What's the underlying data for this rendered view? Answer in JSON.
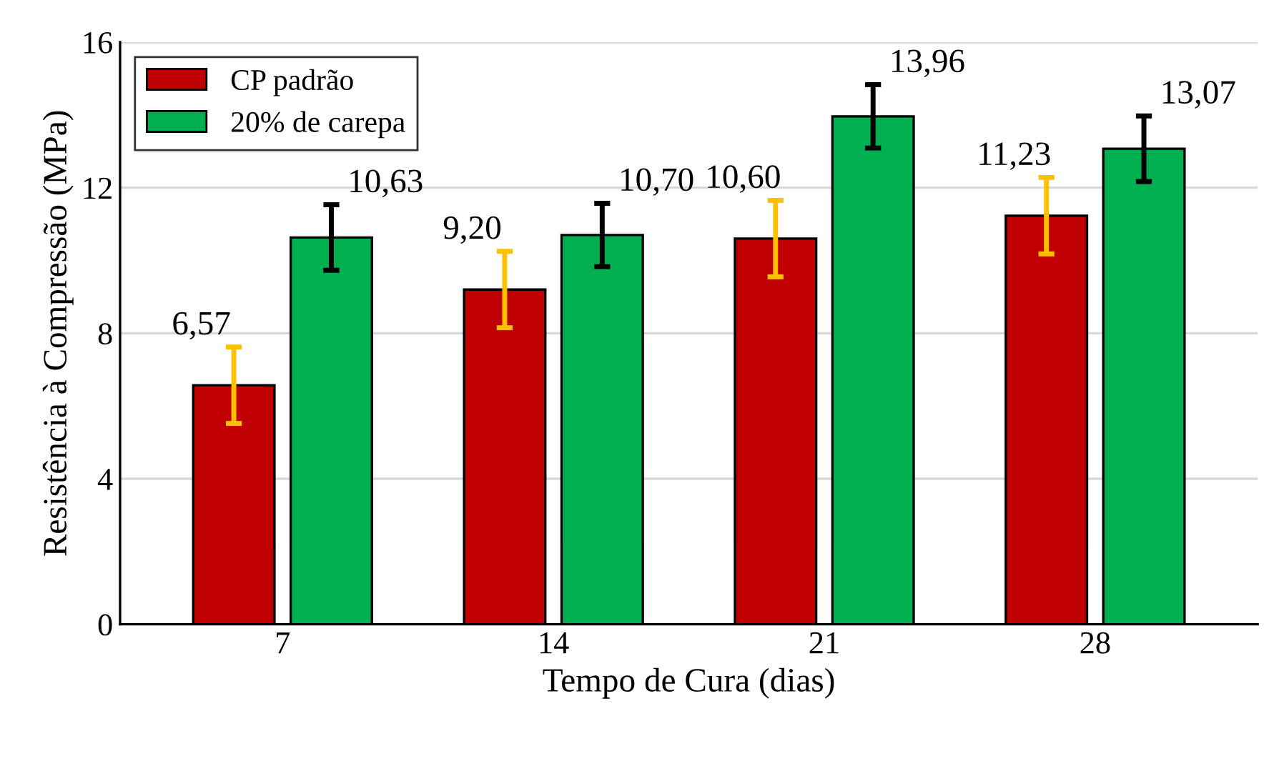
{
  "chart_data": {
    "type": "bar",
    "xlabel": "Tempo de Cura (dias)",
    "ylabel": "Resistência à Compressão (MPa)",
    "categories": [
      "7",
      "14",
      "21",
      "28"
    ],
    "series": [
      {
        "name": "CP padrão",
        "color": "#c00000",
        "values": [
          6.57,
          9.2,
          10.6,
          11.23
        ],
        "value_labels": [
          "6,57",
          "9,20",
          "10,60",
          "11,23"
        ],
        "errors": [
          1.05,
          1.05,
          1.05,
          1.05
        ]
      },
      {
        "name": "20% de carepa",
        "color": "#00b050",
        "values": [
          10.63,
          10.7,
          13.96,
          13.07
        ],
        "value_labels": [
          "10,63",
          "10,70",
          "13,96",
          "13,07"
        ],
        "errors": [
          0.9,
          0.87,
          0.87,
          0.9
        ]
      }
    ],
    "ylim": [
      0,
      16
    ],
    "yticks": [
      0,
      4,
      8,
      12,
      16
    ],
    "grid": "y",
    "legend": "top left"
  }
}
